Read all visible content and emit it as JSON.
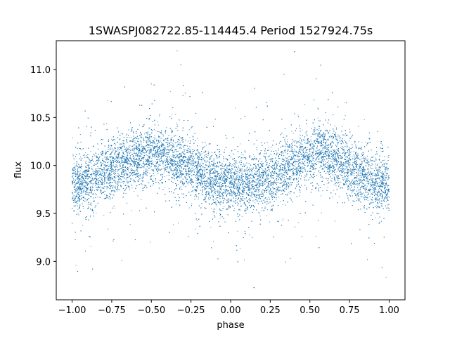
{
  "chart_data": {
    "type": "scatter",
    "title": "1SWASPJ082722.85-114445.4 Period 1527924.75s",
    "xlabel": "phase",
    "ylabel": "flux",
    "xlim": [
      -1.1,
      1.1
    ],
    "ylim": [
      8.6,
      11.3
    ],
    "x_ticks": [
      -1.0,
      -0.75,
      -0.5,
      -0.25,
      0.0,
      0.25,
      0.5,
      0.75,
      1.0
    ],
    "x_tick_labels": [
      "−1.00",
      "−0.75",
      "−0.50",
      "−0.25",
      "0.00",
      "0.25",
      "0.50",
      "0.75",
      "1.00"
    ],
    "y_ticks": [
      9.0,
      9.5,
      10.0,
      10.5,
      11.0
    ],
    "y_tick_labels": [
      "9.0",
      "9.5",
      "10.0",
      "10.5",
      "11.0"
    ],
    "grid": false,
    "marker_color": "#1f77b4",
    "series": [
      {
        "x": [
          -1.0,
          -0.9,
          -0.8,
          -0.7,
          -0.6,
          -0.5,
          -0.45,
          -0.4,
          -0.3,
          -0.2,
          -0.1,
          0.0,
          0.1,
          0.2,
          0.3,
          0.4,
          0.5,
          0.55,
          0.6,
          0.7,
          0.8,
          0.9,
          1.0
        ],
        "y": [
          9.78,
          9.85,
          9.92,
          10.02,
          10.08,
          10.1,
          10.12,
          10.1,
          10.02,
          9.92,
          9.84,
          9.8,
          9.78,
          9.85,
          9.92,
          10.02,
          10.08,
          10.12,
          10.1,
          10.02,
          9.92,
          9.84,
          9.8
        ]
      }
    ],
    "approx_point_count": 20000
  }
}
